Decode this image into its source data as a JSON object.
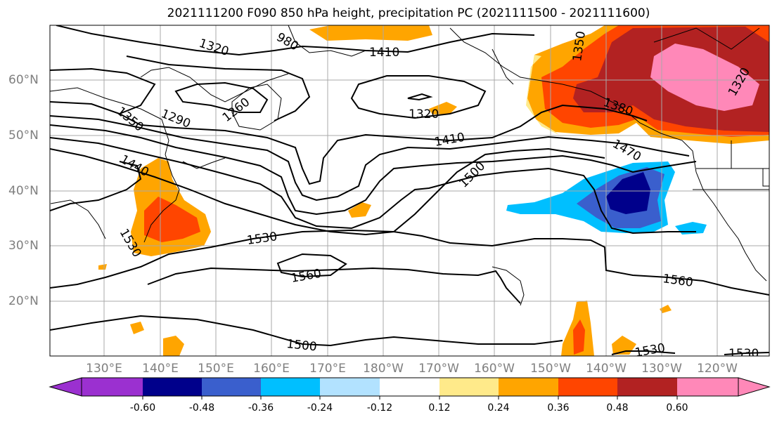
{
  "title": "2021111200 F090 850 hPa height, precipitation PC (2021111500 - 2021111600)",
  "lat_labels": [
    "60°N",
    "50°N",
    "40°N",
    "30°N",
    "20°N"
  ],
  "lon_labels": [
    "130°E",
    "140°E",
    "150°E",
    "160°E",
    "170°E",
    "180°W",
    "170°W",
    "160°W",
    "150°W",
    "140°W",
    "130°W",
    "120°W"
  ],
  "contour_labels": [
    "1320",
    "1410",
    "1260",
    "1290",
    "1350",
    "1440",
    "1320",
    "1410",
    "1500",
    "1530",
    "1560",
    "1500",
    "1350",
    "1380",
    "1470",
    "1320",
    "1560",
    "1530",
    "1530",
    "980",
    "1530"
  ],
  "colorbar": {
    "labels": [
      "-0.60",
      "-0.48",
      "-0.36",
      "-0.24",
      "-0.12",
      "0.12",
      "0.24",
      "0.36",
      "0.48",
      "0.60"
    ],
    "colors": [
      "#9b30d0",
      "#00008b",
      "#3a5fcd",
      "#00bfff",
      "#b2e2ff",
      "#ffffff",
      "#ffea8a",
      "#ffa500",
      "#ff4500",
      "#b22222",
      "#ff88b8"
    ]
  },
  "colors": {
    "light_orange": "#ffa500",
    "orange_red": "#ff4500",
    "dark_red": "#b22222",
    "pink": "#ff88b8",
    "yellow": "#ffea8a",
    "deep_sky": "#00bfff",
    "royal_blue": "#3a5fcd",
    "navy": "#00008b",
    "light_blue": "#b2e2ff"
  }
}
